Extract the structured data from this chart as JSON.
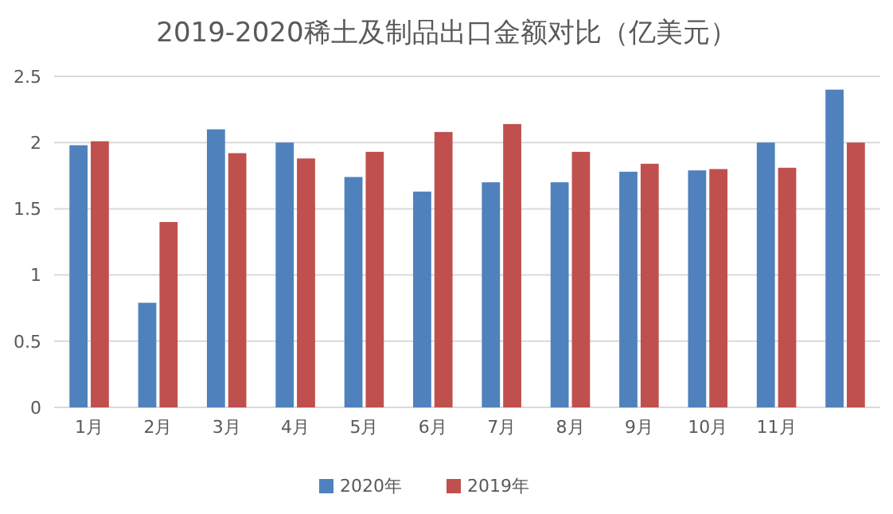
{
  "chart_data": {
    "type": "bar",
    "title": "2019-2020稀土及制品出口金额对比（亿美元）",
    "categories": [
      "1月",
      "2月",
      "3月",
      "4月",
      "5月",
      "6月",
      "7月",
      "8月",
      "9月",
      "10月",
      "11月",
      null
    ],
    "series": [
      {
        "name": "2020年",
        "color": "#4f81bd",
        "values": [
          1.98,
          0.79,
          2.1,
          2.0,
          1.74,
          1.63,
          1.7,
          1.7,
          1.78,
          1.79,
          2.0,
          2.4
        ]
      },
      {
        "name": "2019年",
        "color": "#c0504d",
        "values": [
          2.01,
          1.4,
          1.92,
          1.88,
          1.93,
          2.08,
          2.14,
          1.93,
          1.84,
          1.8,
          1.81,
          2.0
        ]
      }
    ],
    "ylim": [
      0,
      2.5
    ],
    "yticks": [
      0,
      0.5,
      1,
      1.5,
      2,
      2.5
    ],
    "grid": "y",
    "legend": "bottom"
  }
}
